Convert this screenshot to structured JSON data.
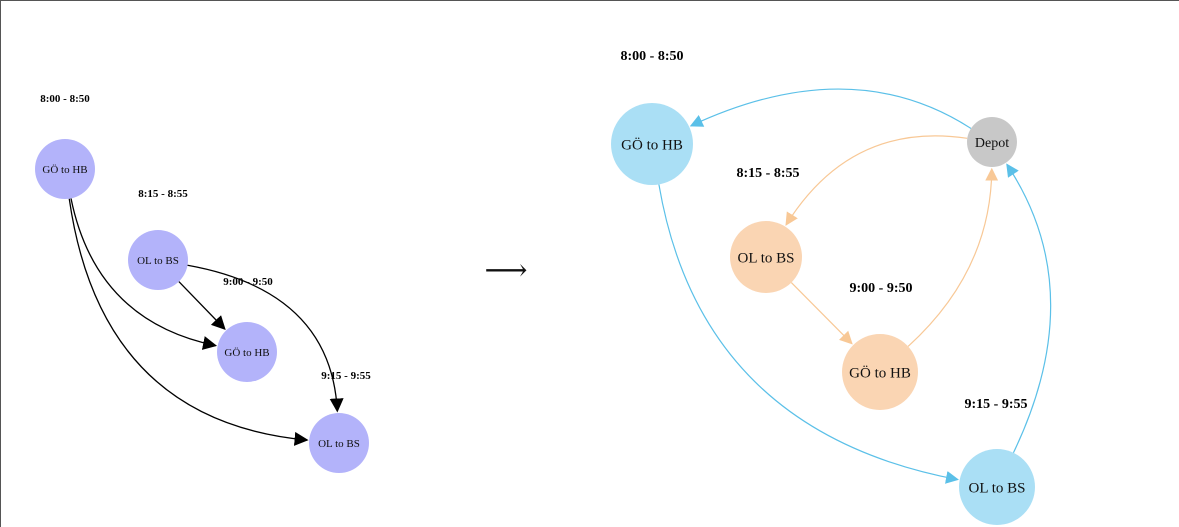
{
  "arrow_symbol": "⟶",
  "left": {
    "nodes": [
      {
        "id": "L1",
        "label": "GÖ to HB",
        "time": "8:00 - 8:50"
      },
      {
        "id": "L2",
        "label": "OL to BS",
        "time": "8:15 - 8:55"
      },
      {
        "id": "L3",
        "label": "GÖ to HB",
        "time": "9:00 - 9:50"
      },
      {
        "id": "L4",
        "label": "OL to BS",
        "time": "9:15 - 9:55"
      }
    ],
    "edges": [
      [
        "L1",
        "L3"
      ],
      [
        "L1",
        "L4"
      ],
      [
        "L2",
        "L3"
      ],
      [
        "L2",
        "L4"
      ]
    ],
    "colors": {
      "node": "#b3b3fa",
      "edge": "#000000"
    }
  },
  "right": {
    "nodes": [
      {
        "id": "Depot",
        "label": "Depot",
        "kind": "depot"
      },
      {
        "id": "R1",
        "label": "GÖ to HB",
        "time": "8:00 - 8:50",
        "kind": "blue"
      },
      {
        "id": "R2",
        "label": "OL to BS",
        "time": "8:15 - 8:55",
        "kind": "orange"
      },
      {
        "id": "R3",
        "label": "GÖ to HB",
        "time": "9:00 - 9:50",
        "kind": "orange"
      },
      {
        "id": "R4",
        "label": "OL to BS",
        "time": "9:15 - 9:55",
        "kind": "blue"
      }
    ],
    "edges": [
      [
        "Depot",
        "R1",
        "blue"
      ],
      [
        "R1",
        "R4",
        "blue"
      ],
      [
        "R4",
        "Depot",
        "blue"
      ],
      [
        "Depot",
        "R2",
        "orange"
      ],
      [
        "R2",
        "R3",
        "orange"
      ],
      [
        "R3",
        "Depot",
        "orange"
      ]
    ],
    "colors": {
      "depot": "#c8c8c8",
      "blue_node": "#aadff5",
      "orange_node": "#fad5b3",
      "blue_edge": "#5bc0e8",
      "orange_edge": "#f8c896"
    }
  }
}
